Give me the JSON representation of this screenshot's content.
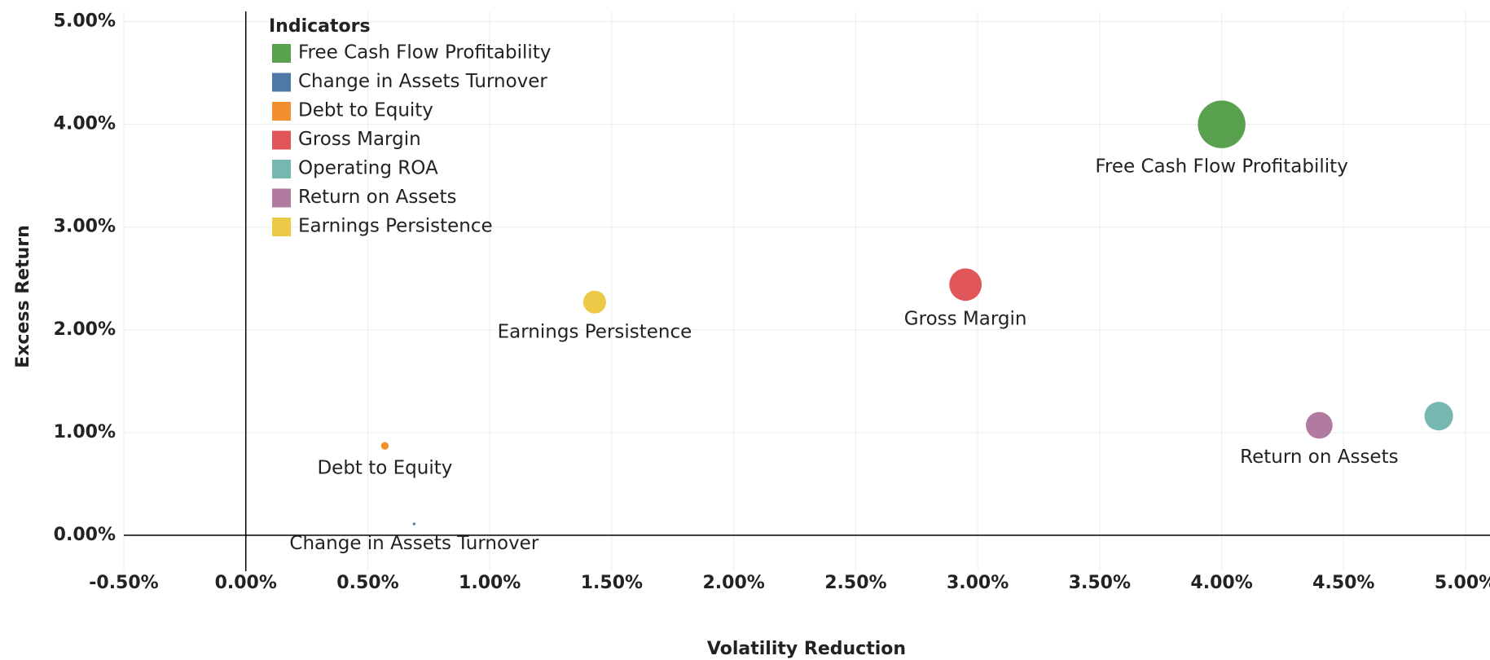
{
  "chart_data": {
    "type": "bubble",
    "x_label": "Volatility Reduction",
    "y_label": "Excess Return",
    "legend_title": "Indicators",
    "legend_position": "upper left",
    "grid": true,
    "xlim": [
      -0.5,
      5.1
    ],
    "ylim": [
      -0.35,
      5.1
    ],
    "xticks": [
      {
        "value": -0.5,
        "label": "-0.50%"
      },
      {
        "value": 0,
        "label": "0.00%"
      },
      {
        "value": 0.5,
        "label": "0.50%"
      },
      {
        "value": 1,
        "label": "1.00%"
      },
      {
        "value": 1.5,
        "label": "1.50%"
      },
      {
        "value": 2,
        "label": "2.00%"
      },
      {
        "value": 2.5,
        "label": "2.50%"
      },
      {
        "value": 3,
        "label": "3.00%"
      },
      {
        "value": 3.5,
        "label": "3.50%"
      },
      {
        "value": 4,
        "label": "4.00%"
      },
      {
        "value": 4.5,
        "label": "4.50%"
      },
      {
        "value": 5,
        "label": "5.00%"
      }
    ],
    "yticks": [
      {
        "value": 0,
        "label": "0.00%"
      },
      {
        "value": 1,
        "label": "1.00%"
      },
      {
        "value": 2,
        "label": "2.00%"
      },
      {
        "value": 3,
        "label": "3.00%"
      },
      {
        "value": 4,
        "label": "4.00%"
      },
      {
        "value": 5,
        "label": "5.00%"
      }
    ],
    "series": [
      {
        "name": "Free Cash Flow Profitability",
        "color": "#59a14f",
        "x": 4.0,
        "y": 4.0,
        "size": 625,
        "show_label": true
      },
      {
        "name": "Change in Assets Turnover",
        "color": "#4e79a7",
        "x": 0.69,
        "y": 0.11,
        "size": 2,
        "show_label": true
      },
      {
        "name": "Debt to Equity",
        "color": "#f28e2b",
        "x": 0.57,
        "y": 0.87,
        "size": 16,
        "show_label": true
      },
      {
        "name": "Gross Margin",
        "color": "#e15759",
        "x": 2.95,
        "y": 2.44,
        "size": 289,
        "show_label": true
      },
      {
        "name": "Operating ROA",
        "color": "#76b7b2",
        "x": 4.89,
        "y": 1.16,
        "size": 225,
        "show_label": false
      },
      {
        "name": "Return on Assets",
        "color": "#b07aa1",
        "x": 4.4,
        "y": 1.07,
        "size": 196,
        "show_label": true
      },
      {
        "name": "Earnings Persistence",
        "color": "#edc948",
        "x": 1.43,
        "y": 2.27,
        "size": 144,
        "show_label": true
      }
    ]
  }
}
